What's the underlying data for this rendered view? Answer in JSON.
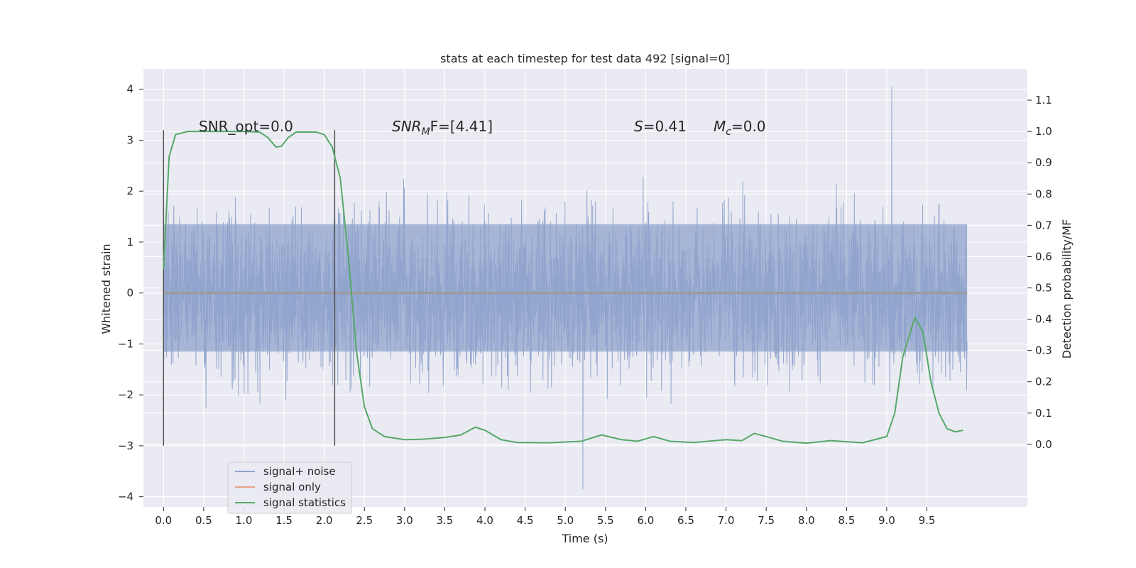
{
  "chart_data": {
    "type": "line",
    "title": "stats at each timestep for test data 492 [signal=0]",
    "xlabel": "Time (s)",
    "ylabel": "Whitened strain",
    "ylabel_right": "Detection probability/MF",
    "xlim": [
      -0.25,
      10.75
    ],
    "ylim": [
      -4.2,
      4.4
    ],
    "ylim_right": [
      -0.2,
      1.2
    ],
    "x_ticks": [
      "0.0",
      "0.5",
      "1.0",
      "1.5",
      "2.0",
      "2.5",
      "3.0",
      "3.5",
      "4.0",
      "4.5",
      "5.0",
      "5.5",
      "6.0",
      "6.5",
      "7.0",
      "7.5",
      "8.0",
      "8.5",
      "9.0",
      "9.5"
    ],
    "y_ticks": [
      "−4",
      "−3",
      "−2",
      "−1",
      "0",
      "1",
      "2",
      "3",
      "4"
    ],
    "y_ticks_right": [
      "0.0",
      "0.1",
      "0.2",
      "0.3",
      "0.4",
      "0.5",
      "0.6",
      "0.7",
      "0.8",
      "0.9",
      "1.0",
      "1.1"
    ],
    "grid": true,
    "legend_position": "lower-left",
    "annotations": {
      "snr_opt": "SNR_opt=0.0",
      "snr_mf_main": "SNR",
      "snr_mf_sub": "M",
      "snr_mf_rest": "F=[4.41]",
      "s_main": "S",
      "s_rest": "=0.41",
      "mc_main": "M",
      "mc_sub": "c",
      "mc_rest": "=0.0"
    },
    "vertical_markers": [
      {
        "x": 0.0,
        "y": [
          -3.0,
          3.2
        ]
      },
      {
        "x": 2.13,
        "y": [
          -3.0,
          3.2
        ]
      }
    ],
    "noise_envelope": {
      "x_start": 0.0,
      "x_end": 10.0,
      "core_band": [
        -1.15,
        1.35
      ],
      "max_peak": 4.05,
      "min_trough": -3.85
    },
    "series": [
      {
        "name": "signal+ noise",
        "color": "#8fa3cc"
      },
      {
        "name": "signal only",
        "color": "#e8a48a",
        "values": [
          [
            0.0,
            0.0
          ],
          [
            10.0,
            0.0
          ]
        ]
      },
      {
        "name": "signal statistics",
        "color": "#55a868",
        "axis": "right",
        "values": [
          [
            0.0,
            0.56
          ],
          [
            0.07,
            0.92
          ],
          [
            0.15,
            0.99
          ],
          [
            0.3,
            1.0
          ],
          [
            0.6,
            1.0
          ],
          [
            1.0,
            1.0
          ],
          [
            1.2,
            0.998
          ],
          [
            1.3,
            0.98
          ],
          [
            1.4,
            0.95
          ],
          [
            1.47,
            0.953
          ],
          [
            1.55,
            0.98
          ],
          [
            1.65,
            0.998
          ],
          [
            1.9,
            0.998
          ],
          [
            2.0,
            0.99
          ],
          [
            2.1,
            0.95
          ],
          [
            2.2,
            0.85
          ],
          [
            2.3,
            0.6
          ],
          [
            2.4,
            0.3
          ],
          [
            2.5,
            0.12
          ],
          [
            2.6,
            0.05
          ],
          [
            2.75,
            0.025
          ],
          [
            3.0,
            0.015
          ],
          [
            3.2,
            0.016
          ],
          [
            3.5,
            0.022
          ],
          [
            3.7,
            0.03
          ],
          [
            3.88,
            0.055
          ],
          [
            4.0,
            0.045
          ],
          [
            4.2,
            0.015
          ],
          [
            4.4,
            0.006
          ],
          [
            4.8,
            0.005
          ],
          [
            5.2,
            0.01
          ],
          [
            5.45,
            0.03
          ],
          [
            5.7,
            0.015
          ],
          [
            5.9,
            0.01
          ],
          [
            6.1,
            0.025
          ],
          [
            6.3,
            0.01
          ],
          [
            6.6,
            0.006
          ],
          [
            7.0,
            0.015
          ],
          [
            7.2,
            0.012
          ],
          [
            7.35,
            0.035
          ],
          [
            7.5,
            0.025
          ],
          [
            7.7,
            0.01
          ],
          [
            8.0,
            0.004
          ],
          [
            8.3,
            0.012
          ],
          [
            8.7,
            0.005
          ],
          [
            9.0,
            0.025
          ],
          [
            9.1,
            0.1
          ],
          [
            9.2,
            0.28
          ],
          [
            9.35,
            0.405
          ],
          [
            9.45,
            0.36
          ],
          [
            9.55,
            0.2
          ],
          [
            9.65,
            0.1
          ],
          [
            9.75,
            0.05
          ],
          [
            9.85,
            0.04
          ],
          [
            9.95,
            0.045
          ]
        ]
      }
    ]
  }
}
